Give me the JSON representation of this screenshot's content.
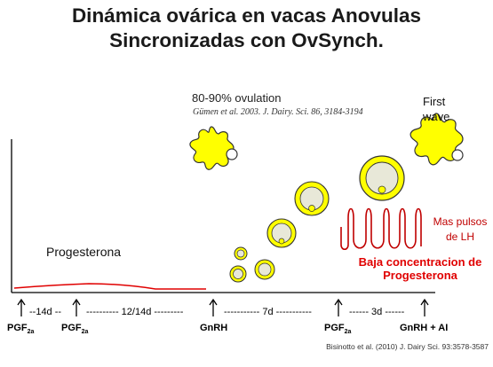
{
  "title": {
    "line1": "Dinámica ovárica en vacas Anovulas",
    "line2": "Sincronizadas con OvSynch."
  },
  "ovulation": {
    "label": "80-90% ovulation",
    "citation": "Gümen et al. 2003. J. Dairy. Sci. 86, 3184-3194"
  },
  "first_wave": "First wave",
  "lh": {
    "label": "Mas pulsos de LH",
    "color": "#c00000"
  },
  "progesterone": {
    "label": "Progesterona",
    "low_label": "Baja concentracion de Progesterona",
    "color": "#e00000"
  },
  "timeline": {
    "intervals": [
      "--14d --",
      "---------- 12/14d ---------",
      "----------- 7d -----------",
      "------ 3d ------"
    ],
    "events": [
      {
        "main": "PGF",
        "sub": "2a"
      },
      {
        "main": "PGF",
        "sub": "2a"
      },
      {
        "main": "GnRH",
        "sub": ""
      },
      {
        "main": "PGF",
        "sub": "2a"
      },
      {
        "main": "GnRH + AI",
        "sub": ""
      }
    ]
  },
  "citation_bisinotto": "Bisinotto et al. (2010) J. Dairy Sci. 93:3578-3587",
  "colors": {
    "follicle": "#ffff00",
    "follicle_stroke": "#333333",
    "antrum": "#e8e8d8"
  },
  "icons": [
    "follicle-icon",
    "corpus-luteum-icon",
    "oocyte-icon",
    "arrow-up-icon"
  ]
}
